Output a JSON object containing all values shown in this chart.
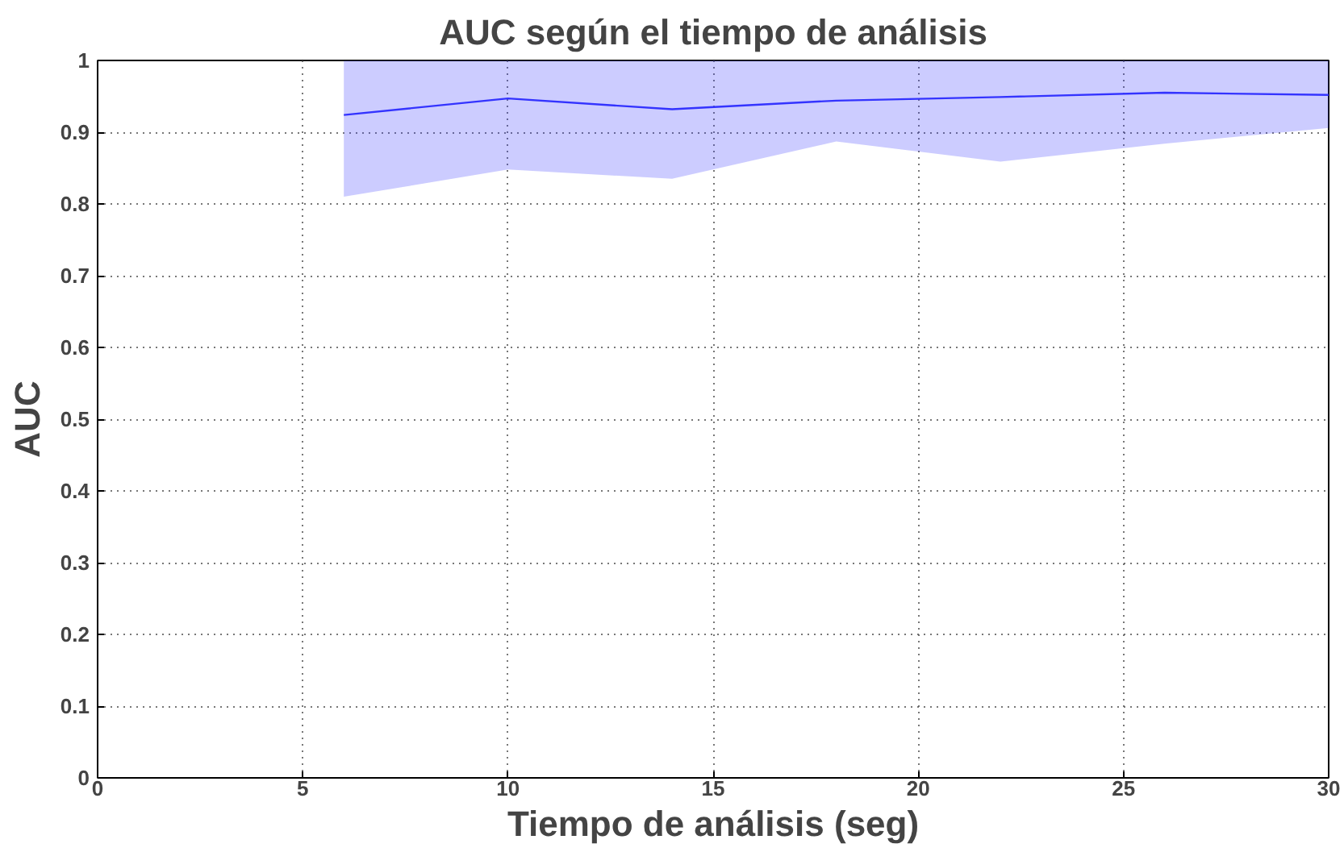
{
  "chart_data": {
    "type": "line",
    "title": "AUC según el tiempo de análisis",
    "xlabel": "Tiempo de análisis (seg)",
    "ylabel": "AUC",
    "x": [
      6,
      10,
      14,
      18,
      22,
      26,
      30
    ],
    "series": [
      {
        "color": "#3333ff",
        "values": [
          0.924,
          0.947,
          0.932,
          0.944,
          0.949,
          0.955,
          0.952
        ],
        "lower": [
          0.81,
          0.848,
          0.835,
          0.887,
          0.859,
          0.884,
          0.906
        ],
        "upper": [
          1,
          1,
          1,
          1,
          1,
          1,
          1
        ]
      }
    ],
    "xlim": [
      0,
      30
    ],
    "ylim": [
      0,
      1
    ],
    "xticks": [
      0,
      5,
      10,
      15,
      20,
      25,
      30
    ],
    "yticks": [
      0,
      0.1,
      0.2,
      0.3,
      0.4,
      0.5,
      0.6,
      0.7,
      0.8,
      0.9,
      1
    ],
    "grid": true,
    "line_style": "solid"
  }
}
